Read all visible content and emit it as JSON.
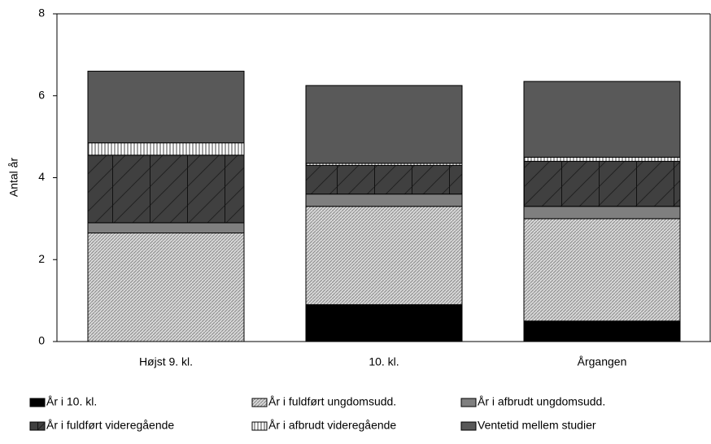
{
  "chart_data": {
    "type": "stacked_bar",
    "y_label": "Antal år",
    "categories": [
      "Højst 9. kl.",
      "10. kl.",
      "Årgangen"
    ],
    "series": [
      {
        "name": "År i 10. kl.",
        "color": "#000000",
        "values": [
          0,
          0.9,
          0.5
        ]
      },
      {
        "name": "År i fuldført ungdomsudd.",
        "color": "#d9d9d9",
        "values": [
          2.65,
          2.4,
          2.5
        ]
      },
      {
        "name": "År i afbrudt ungdomsudd.",
        "color": "#7f7f7f",
        "values": [
          0.25,
          0.3,
          0.3
        ]
      },
      {
        "name": "År i fuldført videregående",
        "color": "#404040",
        "values": [
          1.65,
          0.7,
          1.1
        ]
      },
      {
        "name": "År i afbrudt videregående",
        "color": "#ffffff",
        "values": [
          0.3,
          0.05,
          0.1
        ]
      },
      {
        "name": "Ventetid mellem studier",
        "color": "#595959",
        "values": [
          1.75,
          1.9,
          1.85
        ]
      }
    ],
    "ylim": [
      0,
      8
    ],
    "yticks": [
      0,
      2,
      4,
      6,
      8
    ],
    "grid": false
  }
}
